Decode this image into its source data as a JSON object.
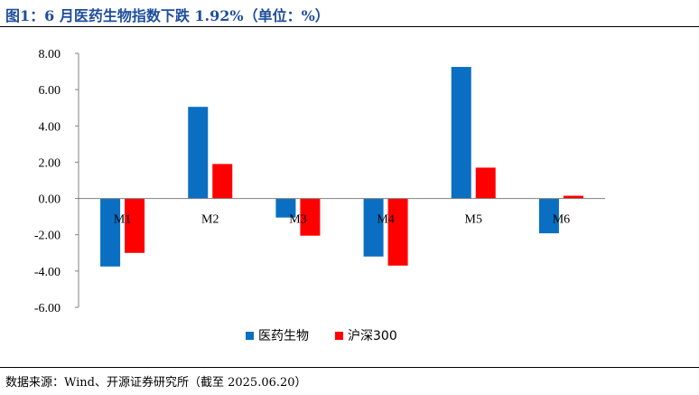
{
  "title": "图1：6 月医药生物指数下跌 1.92%（单位：%）",
  "source": "数据来源：Wind、开源证券研究所（截至 2025.06.20）",
  "colors": {
    "title": "#1f4e9c",
    "series1": "#0a6fc2",
    "series2": "#ff0000"
  },
  "chart_data": {
    "type": "bar",
    "title": "图1：6 月医药生物指数下跌 1.92%（单位：%）",
    "xlabel": "",
    "ylabel": "",
    "categories": [
      "M1",
      "M2",
      "M3",
      "M4",
      "M5",
      "M6"
    ],
    "series": [
      {
        "name": "医药生物",
        "color": "#0a6fc2",
        "values": [
          -3.75,
          5.05,
          -1.05,
          -3.2,
          7.25,
          -1.92
        ]
      },
      {
        "name": "沪深300",
        "color": "#ff0000",
        "values": [
          -3.0,
          1.9,
          -2.05,
          -3.7,
          1.7,
          0.15
        ]
      }
    ],
    "ylim": [
      -6.0,
      8.0
    ],
    "yticks": [
      "8.00",
      "6.00",
      "4.00",
      "2.00",
      "0.00",
      "-2.00",
      "-4.00",
      "-6.00"
    ],
    "ytick_values": [
      8,
      6,
      4,
      2,
      0,
      -2,
      -4,
      -6
    ],
    "grid": false,
    "legend_position": "bottom-center"
  }
}
